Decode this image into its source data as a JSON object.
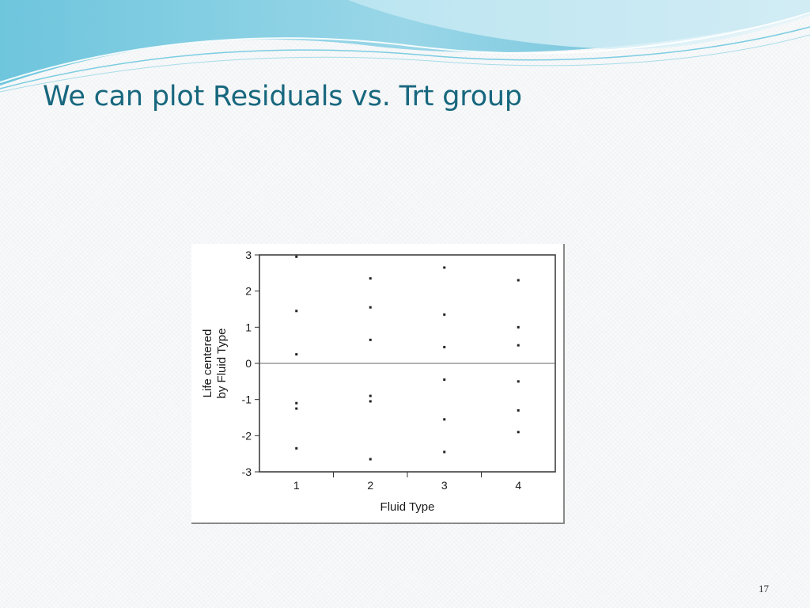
{
  "slide": {
    "title": "We can plot Residuals vs. Trt group",
    "page_number": "17"
  },
  "colors": {
    "title": "#17677e",
    "swoosh_dark": "#4fb8d4",
    "swoosh_light": "#9ad7e8"
  },
  "chart_data": {
    "type": "scatter",
    "title": "",
    "xlabel": "Fluid Type",
    "ylabel_lines": [
      "Life centered",
      "by Fluid Type"
    ],
    "categories": [
      "1",
      "2",
      "3",
      "4"
    ],
    "ylim": [
      -3,
      3
    ],
    "yticks": [
      "3",
      "2",
      "1",
      "0",
      "-1",
      "-2",
      "-3"
    ],
    "reference_line_y": 0,
    "grid": false,
    "points": [
      {
        "x": "1",
        "y": 2.95
      },
      {
        "x": "1",
        "y": 1.45
      },
      {
        "x": "1",
        "y": 0.25
      },
      {
        "x": "1",
        "y": -1.1
      },
      {
        "x": "1",
        "y": -1.25
      },
      {
        "x": "1",
        "y": -2.35
      },
      {
        "x": "2",
        "y": 2.35
      },
      {
        "x": "2",
        "y": 1.55
      },
      {
        "x": "2",
        "y": 0.65
      },
      {
        "x": "2",
        "y": -0.9
      },
      {
        "x": "2",
        "y": -1.05
      },
      {
        "x": "2",
        "y": -2.65
      },
      {
        "x": "3",
        "y": 2.65
      },
      {
        "x": "3",
        "y": 1.35
      },
      {
        "x": "3",
        "y": 0.45
      },
      {
        "x": "3",
        "y": -0.45
      },
      {
        "x": "3",
        "y": -1.55
      },
      {
        "x": "3",
        "y": -2.45
      },
      {
        "x": "4",
        "y": 2.3
      },
      {
        "x": "4",
        "y": 1.0
      },
      {
        "x": "4",
        "y": 0.5
      },
      {
        "x": "4",
        "y": -0.5
      },
      {
        "x": "4",
        "y": -1.3
      },
      {
        "x": "4",
        "y": -1.9
      }
    ]
  }
}
